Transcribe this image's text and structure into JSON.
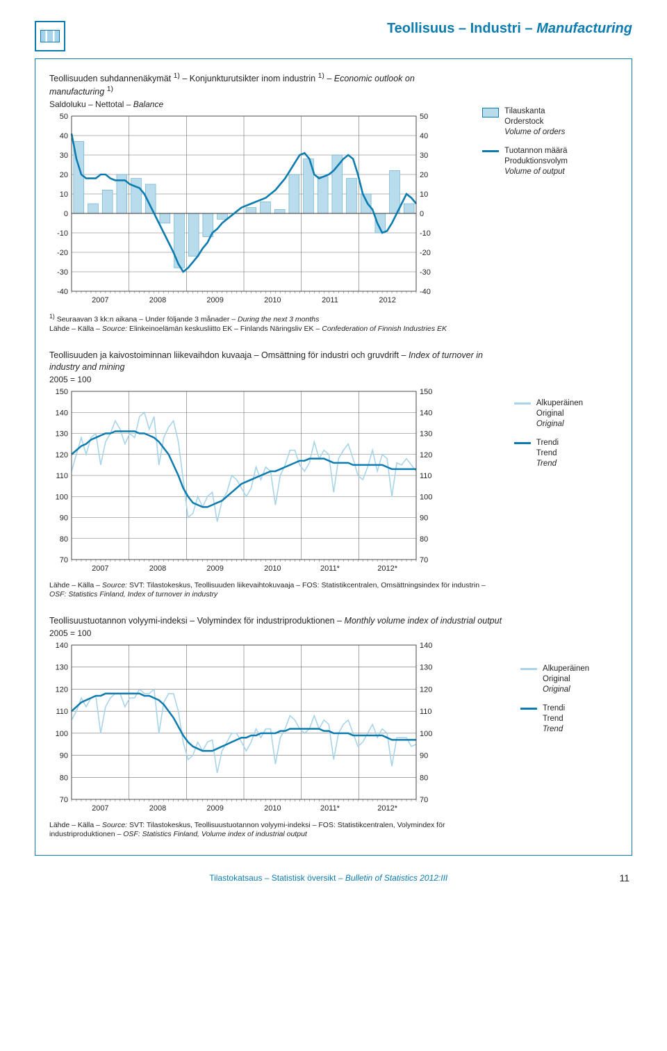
{
  "header": {
    "section_fi": "Teollisuus",
    "section_sv": "Industri",
    "section_en": "Manufacturing"
  },
  "chart1": {
    "type": "combo-bar-line",
    "title_html": "Teollisuuden suhdannenäkymät <sup>1)</sup> – Konjunkturutsikter inom industrin <sup>1)</sup> – <span class='it'>Economic outlook on manufacturing</span> <sup>1)</sup>",
    "subtitle_html": "Saldoluku – Nettotal – <span class='it'>Balance</span>",
    "ylim": [
      -40,
      50
    ],
    "ytick_step": 10,
    "x_years": [
      "2007",
      "2008",
      "2009",
      "2010",
      "2011",
      "2012"
    ],
    "months_per_year": 12,
    "n_months": 72,
    "bar_color": "#b8dcec",
    "bar_border": "#5ea9cb",
    "line_color": "#0b7bb0",
    "grid_color": "#6f6f6f",
    "axis_color": "#333333",
    "bars_q": [
      [
        37,
        5,
        12,
        20
      ],
      [
        18,
        15,
        -5,
        -28
      ],
      [
        -22,
        -12,
        -3,
        0
      ],
      [
        3,
        6,
        2,
        20
      ],
      [
        28,
        19,
        30,
        18
      ],
      [
        10,
        -10,
        22,
        5
      ]
    ],
    "line_monthly": [
      41,
      28,
      20,
      18,
      18,
      18,
      20,
      20,
      18,
      17,
      17,
      17,
      15,
      14,
      13,
      10,
      5,
      0,
      -5,
      -10,
      -15,
      -20,
      -26,
      -30,
      -28,
      -25,
      -22,
      -18,
      -15,
      -10,
      -8,
      -5,
      -3,
      -1,
      1,
      3,
      4,
      5,
      6,
      7,
      8,
      10,
      12,
      15,
      18,
      22,
      26,
      30,
      31,
      28,
      20,
      18,
      19,
      20,
      22,
      25,
      28,
      30,
      28,
      20,
      10,
      5,
      2,
      -5,
      -10,
      -9,
      -5,
      0,
      5,
      10,
      8,
      5
    ],
    "legend": {
      "box": {
        "fi": "Tilauskanta",
        "sv": "Orderstock",
        "en": "Volume of orders"
      },
      "line": {
        "fi": "Tuotannon määrä",
        "sv": "Produktionsvolym",
        "en": "Volume of output",
        "color": "#0b7bb0"
      }
    },
    "footnote_html": "<sup>1)</sup> Seuraavan 3 kk:n aikana – Under följande 3 månader – <span class='it'>During the next 3 months</span><br>Lähde – Källa – <span class='it'>Source:</span> Elinkeinoelämän keskusliitto EK – Finlands Näringsliv EK – <span class='it'>Confederation of Finnish Industries EK</span>"
  },
  "chart2": {
    "type": "line",
    "title_html": "Teollisuuden ja kaivostoiminnan liikevaihdon kuvaaja – Omsättning för industri och gruvdrift – <span class='it'>Index of turnover in industry and mining</span>",
    "subtitle_html": "2005 = 100",
    "ylim": [
      70,
      150
    ],
    "ytick_step": 10,
    "x_years": [
      "2007",
      "2008",
      "2009",
      "2010",
      "2011*",
      "2012*"
    ],
    "n_months": 72,
    "grid_color": "#6f6f6f",
    "series": {
      "original": {
        "color": "#a7d4ea",
        "width": 1.6,
        "values": [
          112,
          120,
          128,
          120,
          128,
          130,
          115,
          126,
          130,
          136,
          132,
          125,
          130,
          128,
          138,
          140,
          132,
          138,
          115,
          128,
          133,
          136,
          126,
          108,
          90,
          92,
          100,
          95,
          100,
          102,
          88,
          98,
          102,
          110,
          108,
          104,
          100,
          104,
          114,
          108,
          114,
          112,
          96,
          110,
          115,
          122,
          122,
          115,
          112,
          116,
          126,
          118,
          122,
          120,
          102,
          118,
          122,
          125,
          118,
          110,
          108,
          114,
          122,
          112,
          120,
          118,
          100,
          116,
          115,
          118,
          115,
          112
        ]
      },
      "trend": {
        "color": "#0b7bb0",
        "width": 2.5,
        "values": [
          120,
          122,
          124,
          125,
          127,
          128,
          129,
          130,
          130,
          131,
          131,
          131,
          131,
          131,
          130,
          130,
          129,
          128,
          126,
          123,
          120,
          115,
          110,
          104,
          100,
          97,
          96,
          95,
          95,
          96,
          97,
          98,
          100,
          102,
          104,
          106,
          107,
          108,
          109,
          110,
          111,
          112,
          112,
          113,
          114,
          115,
          116,
          117,
          117,
          118,
          118,
          118,
          118,
          117,
          116,
          116,
          116,
          116,
          115,
          115,
          115,
          115,
          115,
          115,
          115,
          114,
          113,
          113,
          113,
          113,
          113,
          113
        ]
      }
    },
    "legend": {
      "l1": {
        "fi": "Alkuperäinen",
        "sv": "Original",
        "en": "Original",
        "color": "#a7d4ea"
      },
      "l2": {
        "fi": "Trendi",
        "sv": "Trend",
        "en": "Trend",
        "color": "#0b7bb0"
      }
    },
    "footnote_html": "Lähde – Källa – <span class='it'>Source:</span> SVT: Tilastokeskus, Teollisuuden liikevaihtokuvaaja – FOS: Statistikcentralen, Omsättningsindex för industrin – <span class='it'>OSF: Statistics Finland, Index of turnover in industry</span>"
  },
  "chart3": {
    "type": "line",
    "title_html": "Teollisuustuotannon volyymi-indeksi – Volymindex för industriproduktionen – <span class='it'>Monthly volume index of industrial output</span>",
    "subtitle_html": "2005 = 100",
    "ylim": [
      70,
      140
    ],
    "ytick_step": 10,
    "x_years": [
      "2007",
      "2008",
      "2009",
      "2010",
      "2011*",
      "2012*"
    ],
    "n_months": 72,
    "grid_color": "#6f6f6f",
    "series": {
      "original": {
        "color": "#a7d4ea",
        "width": 1.6,
        "values": [
          106,
          110,
          116,
          112,
          116,
          117,
          100,
          112,
          116,
          118,
          118,
          112,
          116,
          116,
          120,
          118,
          118,
          120,
          100,
          114,
          118,
          118,
          110,
          96,
          88,
          90,
          96,
          92,
          96,
          97,
          82,
          92,
          96,
          100,
          100,
          96,
          92,
          96,
          102,
          98,
          102,
          102,
          86,
          98,
          102,
          108,
          106,
          102,
          100,
          102,
          108,
          102,
          106,
          104,
          88,
          100,
          104,
          106,
          100,
          94,
          96,
          100,
          104,
          98,
          102,
          100,
          85,
          98,
          98,
          98,
          94,
          95
        ]
      },
      "trend": {
        "color": "#0b7bb0",
        "width": 2.5,
        "values": [
          110,
          112,
          114,
          115,
          116,
          117,
          117,
          118,
          118,
          118,
          118,
          118,
          118,
          118,
          118,
          117,
          117,
          116,
          115,
          113,
          110,
          107,
          103,
          99,
          96,
          94,
          93,
          92,
          92,
          92,
          93,
          94,
          95,
          96,
          97,
          98,
          98,
          99,
          99,
          100,
          100,
          100,
          100,
          101,
          101,
          102,
          102,
          102,
          102,
          102,
          102,
          102,
          101,
          101,
          100,
          100,
          100,
          100,
          99,
          99,
          99,
          99,
          99,
          99,
          99,
          98,
          97,
          97,
          97,
          97,
          97,
          97
        ]
      }
    },
    "legend": {
      "l1": {
        "fi": "Alkuperäinen",
        "sv": "Original",
        "en": "Original",
        "color": "#a7d4ea"
      },
      "l2": {
        "fi": "Trendi",
        "sv": "Trend",
        "en": "Trend",
        "color": "#0b7bb0"
      }
    },
    "footnote_html": "Lähde – Källa – <span class='it'>Source:</span> SVT: Tilastokeskus, Teollisuustuotannon volyymi-indeksi – FOS: Statistikcentralen, Volymindex för industriproduktionen – <span class='it'>OSF: Statistics Finland, Volume index of industrial output</span>"
  },
  "footer": {
    "fi": "Tilastokatsaus",
    "sv": "Statistisk översikt",
    "en": "Bulletin of Statistics 2012:III",
    "page": "11"
  }
}
